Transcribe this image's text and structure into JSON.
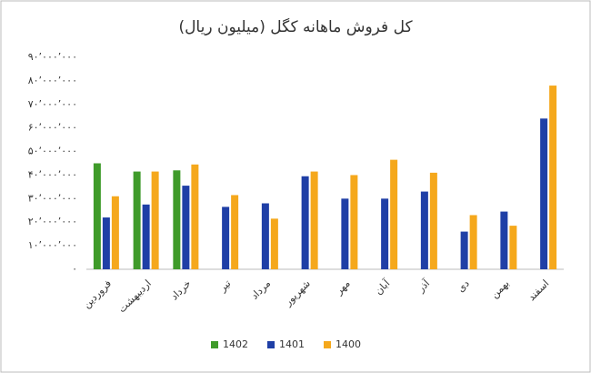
{
  "chart_data": {
    "type": "bar",
    "title": "کل فروش ماهانه کگل (میلیون ریال)",
    "categories": [
      "فروردین",
      "اردیبهشت",
      "خرداد",
      "تیر",
      "مرداد",
      "شهریور",
      "مهر",
      "آبان",
      "آذر",
      "دی",
      "بهمن",
      "اسفند"
    ],
    "series": [
      {
        "name": "1402",
        "color": "#3f9b2a",
        "values": [
          45000000,
          41500000,
          42000000,
          null,
          null,
          null,
          null,
          null,
          null,
          null,
          null,
          null
        ]
      },
      {
        "name": "1401",
        "color": "#1f3fa6",
        "values": [
          22000000,
          27500000,
          35500000,
          26500000,
          28000000,
          39500000,
          30000000,
          30000000,
          33000000,
          16000000,
          24500000,
          64000000
        ]
      },
      {
        "name": "1400",
        "color": "#f5a81c",
        "values": [
          31000000,
          41500000,
          44500000,
          31500000,
          21500000,
          41500000,
          40000000,
          46500000,
          41000000,
          23000000,
          18500000,
          78000000
        ]
      }
    ],
    "ylim": [
      0,
      90000000
    ],
    "yticks": [
      {
        "value": 0,
        "label": "۰"
      },
      {
        "value": 10000000,
        "label": "۱۰٬۰۰۰٬۰۰۰"
      },
      {
        "value": 20000000,
        "label": "۲۰٬۰۰۰٬۰۰۰"
      },
      {
        "value": 30000000,
        "label": "۳۰٬۰۰۰٬۰۰۰"
      },
      {
        "value": 40000000,
        "label": "۴۰٬۰۰۰٬۰۰۰"
      },
      {
        "value": 50000000,
        "label": "۵۰٬۰۰۰٬۰۰۰"
      },
      {
        "value": 60000000,
        "label": "۶۰٬۰۰۰٬۰۰۰"
      },
      {
        "value": 70000000,
        "label": "۷۰٬۰۰۰٬۰۰۰"
      },
      {
        "value": 80000000,
        "label": "۸۰٬۰۰۰٬۰۰۰"
      },
      {
        "value": 90000000,
        "label": "۹۰٬۰۰۰٬۰۰۰"
      }
    ],
    "grid": false,
    "legend": "bottom"
  }
}
